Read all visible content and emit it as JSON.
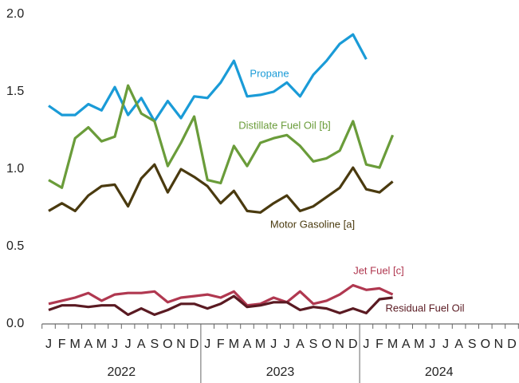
{
  "chart_data": {
    "type": "line",
    "categories": [
      "J",
      "F",
      "M",
      "A",
      "M",
      "J",
      "J",
      "A",
      "S",
      "O",
      "N",
      "D",
      "J",
      "F",
      "M",
      "A",
      "M",
      "J",
      "J",
      "A",
      "S",
      "O",
      "N",
      "D",
      "J",
      "F",
      "M",
      "A",
      "M",
      "J",
      "J",
      "A",
      "S",
      "O",
      "N",
      "D"
    ],
    "years": [
      "2022",
      "2023",
      "2024"
    ],
    "ylim": [
      0,
      2
    ],
    "yticks": [
      {
        "value": 0,
        "label": "0.0"
      },
      0.5,
      {
        "value": 1,
        "label": "1.0"
      },
      1.5,
      {
        "value": 2,
        "label": "2.0"
      }
    ],
    "series": [
      {
        "name": "Propane",
        "color": "#1a9bd7",
        "values": [
          1.41,
          1.35,
          1.35,
          1.42,
          1.38,
          1.53,
          1.35,
          1.46,
          1.31,
          1.44,
          1.33,
          1.47,
          1.46,
          1.56,
          1.7,
          1.47,
          1.48,
          1.5,
          1.56,
          1.47,
          1.61,
          1.7,
          1.81,
          1.87,
          1.71,
          null,
          null,
          null,
          null,
          null,
          null,
          null,
          null,
          null,
          null,
          null
        ]
      },
      {
        "name": "Distillate Fuel Oil [b]",
        "color": "#6a9c3a",
        "values": [
          0.93,
          0.88,
          1.2,
          1.27,
          1.18,
          1.21,
          1.54,
          1.36,
          1.31,
          1.02,
          1.17,
          1.34,
          0.93,
          0.91,
          1.15,
          1.02,
          1.17,
          1.2,
          1.22,
          1.15,
          1.05,
          1.07,
          1.12,
          1.31,
          1.03,
          1.01,
          1.22,
          null,
          null,
          null,
          null,
          null,
          null,
          null,
          null,
          null
        ]
      },
      {
        "name": "Motor Gasoline [a]",
        "color": "#4a3a0f",
        "values": [
          0.73,
          0.78,
          0.73,
          0.83,
          0.89,
          0.9,
          0.76,
          0.94,
          1.03,
          0.85,
          1.0,
          0.95,
          0.89,
          0.78,
          0.86,
          0.73,
          0.72,
          0.78,
          0.83,
          0.73,
          0.76,
          0.82,
          0.88,
          1.01,
          0.87,
          0.85,
          0.92,
          null,
          null,
          null,
          null,
          null,
          null,
          null,
          null,
          null
        ]
      },
      {
        "name": "Jet Fuel [c]",
        "color": "#b03850",
        "values": [
          0.13,
          0.15,
          0.17,
          0.2,
          0.15,
          0.19,
          0.2,
          0.2,
          0.21,
          0.14,
          0.17,
          0.18,
          0.19,
          0.17,
          0.21,
          0.12,
          0.13,
          0.17,
          0.14,
          0.21,
          0.13,
          0.15,
          0.19,
          0.25,
          0.22,
          0.23,
          0.19,
          null,
          null,
          null,
          null,
          null,
          null,
          null,
          null,
          null
        ]
      },
      {
        "name": "Residual Fuel Oil",
        "color": "#5a1a22",
        "values": [
          0.09,
          0.12,
          0.12,
          0.11,
          0.12,
          0.12,
          0.06,
          0.1,
          0.06,
          0.09,
          0.13,
          0.13,
          0.1,
          0.13,
          0.18,
          0.11,
          0.12,
          0.14,
          0.14,
          0.09,
          0.11,
          0.1,
          0.07,
          0.1,
          0.07,
          0.16,
          0.17,
          null,
          null,
          null,
          null,
          null,
          null,
          null,
          null,
          null
        ]
      }
    ]
  }
}
